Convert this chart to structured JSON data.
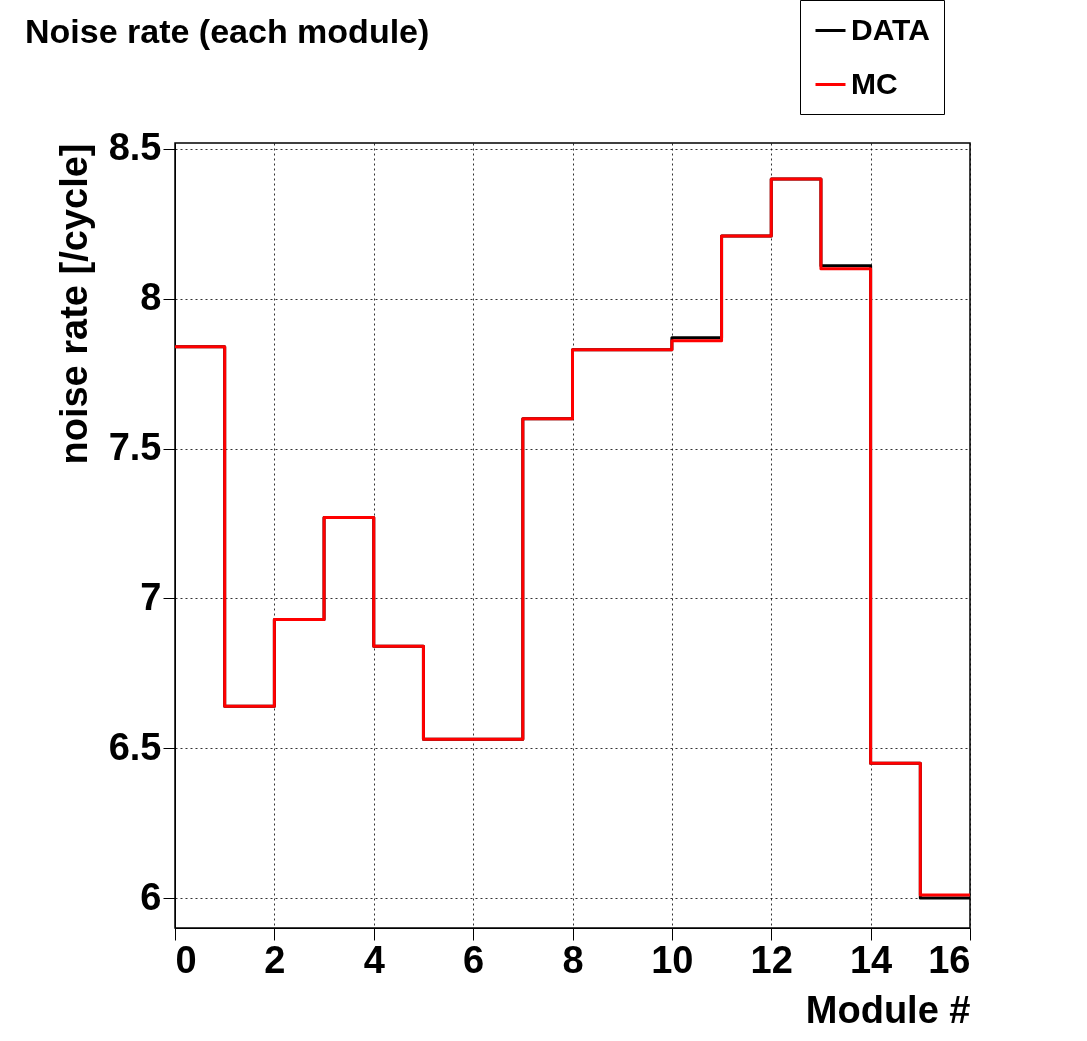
{
  "chart_data": {
    "type": "histogram",
    "title": "Noise rate (each module)",
    "xlabel": "Module #",
    "ylabel": "noise rate [/cycle]",
    "bins": [
      0,
      1,
      2,
      3,
      4,
      5,
      6,
      7,
      8,
      9,
      10,
      11,
      12,
      13,
      14,
      15,
      16
    ],
    "series": [
      {
        "name": "DATA",
        "color": "#000000",
        "values": [
          7.84,
          6.64,
          6.93,
          7.27,
          6.84,
          6.53,
          6.53,
          7.6,
          7.83,
          7.83,
          7.87,
          8.21,
          8.4,
          8.11,
          6.45,
          6.0
        ]
      },
      {
        "name": "MC",
        "color": "#ff0000",
        "values": [
          7.84,
          6.64,
          6.93,
          7.27,
          6.84,
          6.53,
          6.53,
          7.6,
          7.83,
          7.83,
          7.86,
          8.21,
          8.4,
          8.1,
          6.45,
          6.01
        ]
      }
    ],
    "xlim": [
      0,
      16
    ],
    "xticks": [
      0,
      2,
      4,
      6,
      8,
      10,
      12,
      14,
      16
    ],
    "ylim": [
      5.9,
      8.52
    ],
    "yticks": [
      6,
      6.5,
      7,
      7.5,
      8,
      8.5
    ],
    "grid": true,
    "legend": "top right",
    "line_style": "solid"
  }
}
